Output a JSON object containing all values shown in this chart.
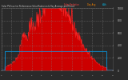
{
  "title": "Solar PV/Inverter Performance Solar Radiation & Day Average per Minute",
  "bg_color": "#2a2a2a",
  "plot_bg_color": "#2a2a2a",
  "grid_color": "#888888",
  "fill_color": "#cc0000",
  "line_color": "#ff2222",
  "avg_line_color": "#00aaff",
  "legend_text1": "Solar Radiation",
  "legend_color1": "#ff4444",
  "legend_text2": "Day Avg",
  "legend_color2": "#ff8800",
  "legend_text3": "kWh",
  "legend_color3": "#00ccff",
  "title_color": "#cccccc",
  "tick_color": "#cccccc",
  "ymax": 1000,
  "yticks": [
    0,
    200,
    400,
    600,
    800,
    1000
  ],
  "num_points": 280
}
